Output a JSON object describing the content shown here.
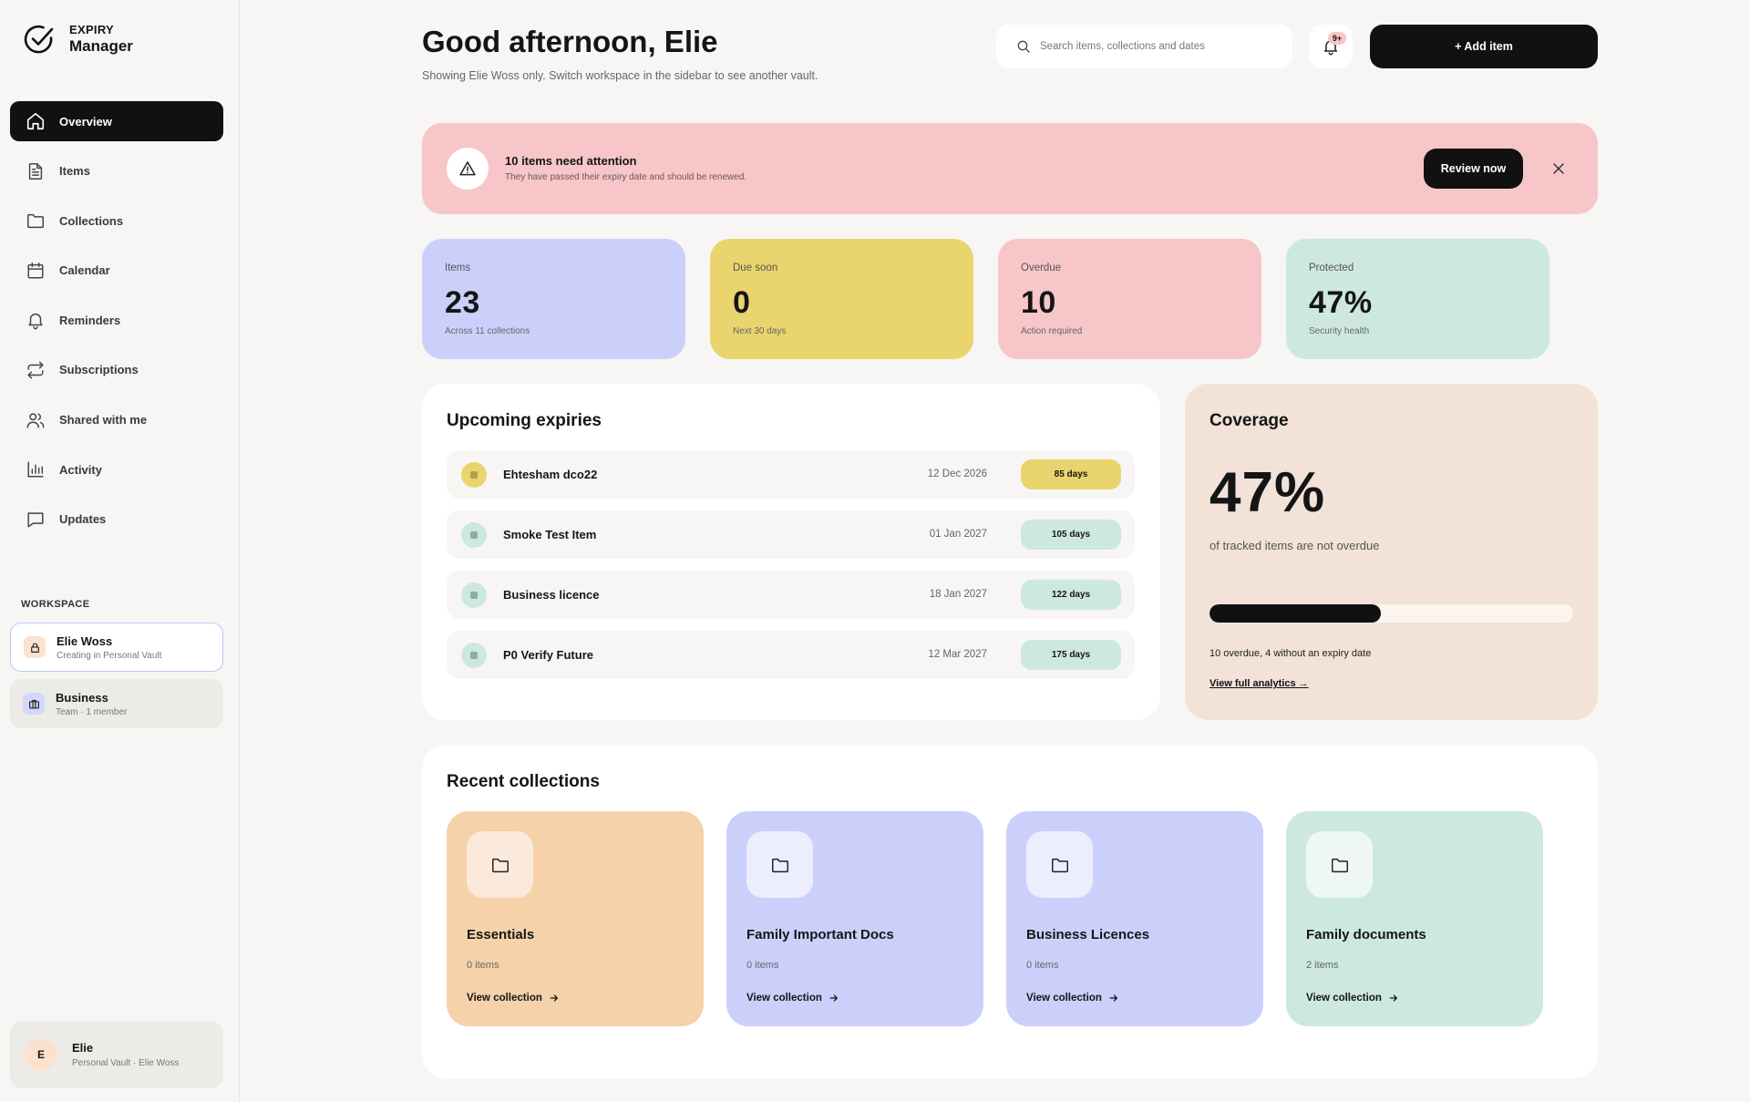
{
  "brand": {
    "line1": "EXPIRY",
    "line2": "Manager"
  },
  "nav": [
    {
      "label": "Overview",
      "icon": "home-icon",
      "active": true
    },
    {
      "label": "Items",
      "icon": "document-icon"
    },
    {
      "label": "Collections",
      "icon": "folder-icon"
    },
    {
      "label": "Calendar",
      "icon": "calendar-icon"
    },
    {
      "label": "Reminders",
      "icon": "bell-icon"
    },
    {
      "label": "Subscriptions",
      "icon": "repeat-icon"
    },
    {
      "label": "Shared with me",
      "icon": "users-icon"
    },
    {
      "label": "Activity",
      "icon": "bar-chart-icon"
    },
    {
      "label": "Updates",
      "icon": "message-icon"
    }
  ],
  "workspace": {
    "label": "WORKSPACE",
    "items": [
      {
        "name": "Elie Woss",
        "sub": "Creating in Personal Vault",
        "icon": "lock-icon"
      },
      {
        "name": "Business",
        "sub": "Team · 1 member",
        "icon": "briefcase-icon"
      }
    ]
  },
  "user": {
    "initial": "E",
    "name": "Elie",
    "sub": "Personal Vault · Elie Woss"
  },
  "header": {
    "greeting": "Good afternoon, Elie",
    "subtitle": "Showing Elie Woss only. Switch workspace in the sidebar to see another vault.",
    "search_placeholder": "Search items, collections and dates",
    "notification_badge": "9+",
    "add_label": "+ Add item"
  },
  "alert": {
    "title": "10 items need attention",
    "subtitle": "They have passed their expiry date and should be renewed.",
    "action": "Review now",
    "color": "#f6c6c9"
  },
  "stats": [
    {
      "label": "Items",
      "value": "23",
      "sub": "Across 11 collections",
      "color": "#cbd0fb"
    },
    {
      "label": "Due soon",
      "value": "0",
      "sub": "Next 30 days",
      "color": "#e9d46d"
    },
    {
      "label": "Overdue",
      "value": "10",
      "sub": "Action required",
      "color": "#f6c6c9"
    },
    {
      "label": "Protected",
      "value": "47%",
      "sub": "Security health",
      "color": "#cde8e1"
    }
  ],
  "upcoming": {
    "title": "Upcoming expiries",
    "rows": [
      {
        "name": "Ehtesham dco22",
        "date": "12 Dec 2026",
        "days": "85 days",
        "color": "#e9d46d",
        "dot": "#b29b2e"
      },
      {
        "name": "Smoke Test Item",
        "date": "01 Jan 2027",
        "days": "105 days",
        "color": "#cde8e1",
        "dot": "#6a9a8e"
      },
      {
        "name": "Business licence",
        "date": "18 Jan 2027",
        "days": "122 days",
        "color": "#cde8e1",
        "dot": "#6a9a8e"
      },
      {
        "name": "P0 Verify Future",
        "date": "12 Mar 2027",
        "days": "175 days",
        "color": "#cde8e1",
        "dot": "#6a9a8e"
      }
    ]
  },
  "coverage": {
    "title": "Coverage",
    "value": "47%",
    "fraction": 0.47,
    "subtitle": "of tracked items are not overdue",
    "note": "10 overdue, 4 without an expiry date",
    "link": "View full analytics →"
  },
  "recent": {
    "title": "Recent collections",
    "link_label": "View collection",
    "items": [
      {
        "name": "Essentials",
        "count": "0 items",
        "color": "#f5d2aa",
        "icon_bg": "#fbeadb"
      },
      {
        "name": "Family Important Docs",
        "count": "0 items",
        "color": "#cbd0fb",
        "icon_bg": "#eceefd"
      },
      {
        "name": "Business Licences",
        "count": "0 items",
        "color": "#cbd0fb",
        "icon_bg": "#eceefd"
      },
      {
        "name": "Family documents",
        "count": "2 items",
        "color": "#cde8e1",
        "icon_bg": "#eef7f4"
      }
    ]
  }
}
